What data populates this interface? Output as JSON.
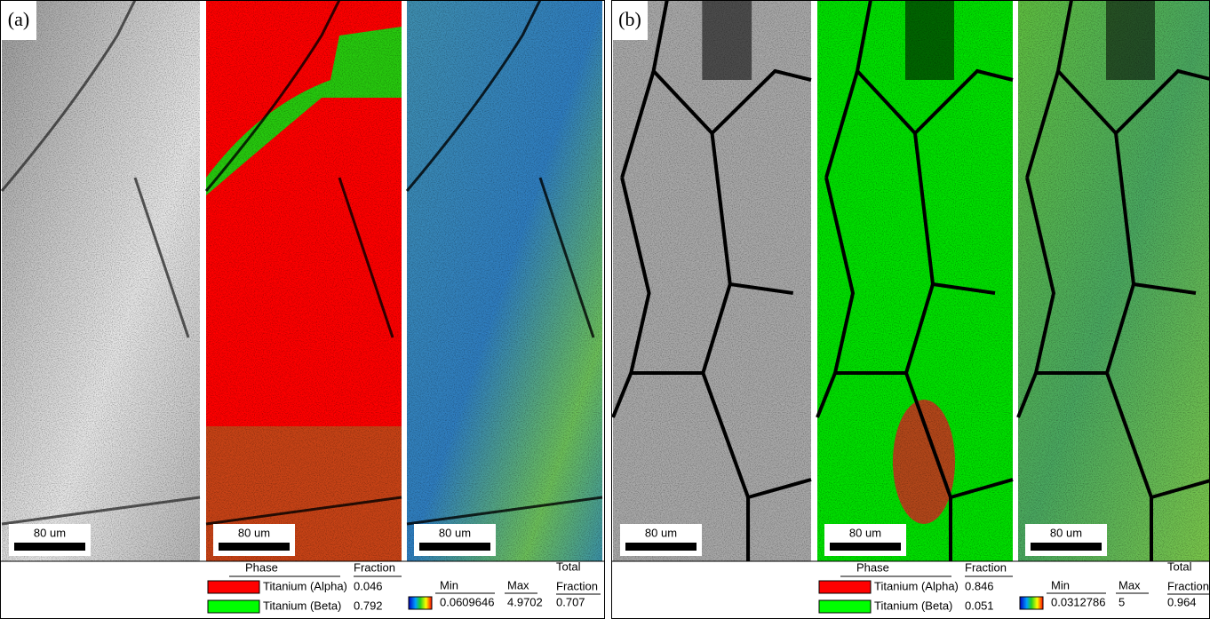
{
  "panels": [
    {
      "label": "(a)",
      "scale_bars": [
        "80 um",
        "80 um",
        "80 um"
      ],
      "phase_table": {
        "headers": [
          "Phase",
          "Fraction"
        ],
        "rows": [
          [
            "Titanium (Alpha)",
            0.046
          ],
          [
            "Titanium (Beta)",
            0.792
          ]
        ]
      },
      "kam_legend": {
        "min_label": "Min",
        "min": 0.0609646,
        "max_label": "Max",
        "max": 4.9702,
        "total_label": [
          "Total",
          "Fraction"
        ],
        "total": 0.707
      }
    },
    {
      "label": "(b)",
      "scale_bars": [
        "80 um",
        "80 um",
        "80 um"
      ],
      "phase_table": {
        "headers": [
          "Phase",
          "Fraction"
        ],
        "rows": [
          [
            "Titanium (Alpha)",
            0.846
          ],
          [
            "Titanium (Beta)",
            0.051
          ]
        ]
      },
      "kam_legend": {
        "min_label": "Min",
        "min": 0.0312786,
        "max_label": "Max",
        "max": 5,
        "total_label": [
          "Total",
          "Fraction"
        ],
        "total": 0.964
      }
    }
  ]
}
